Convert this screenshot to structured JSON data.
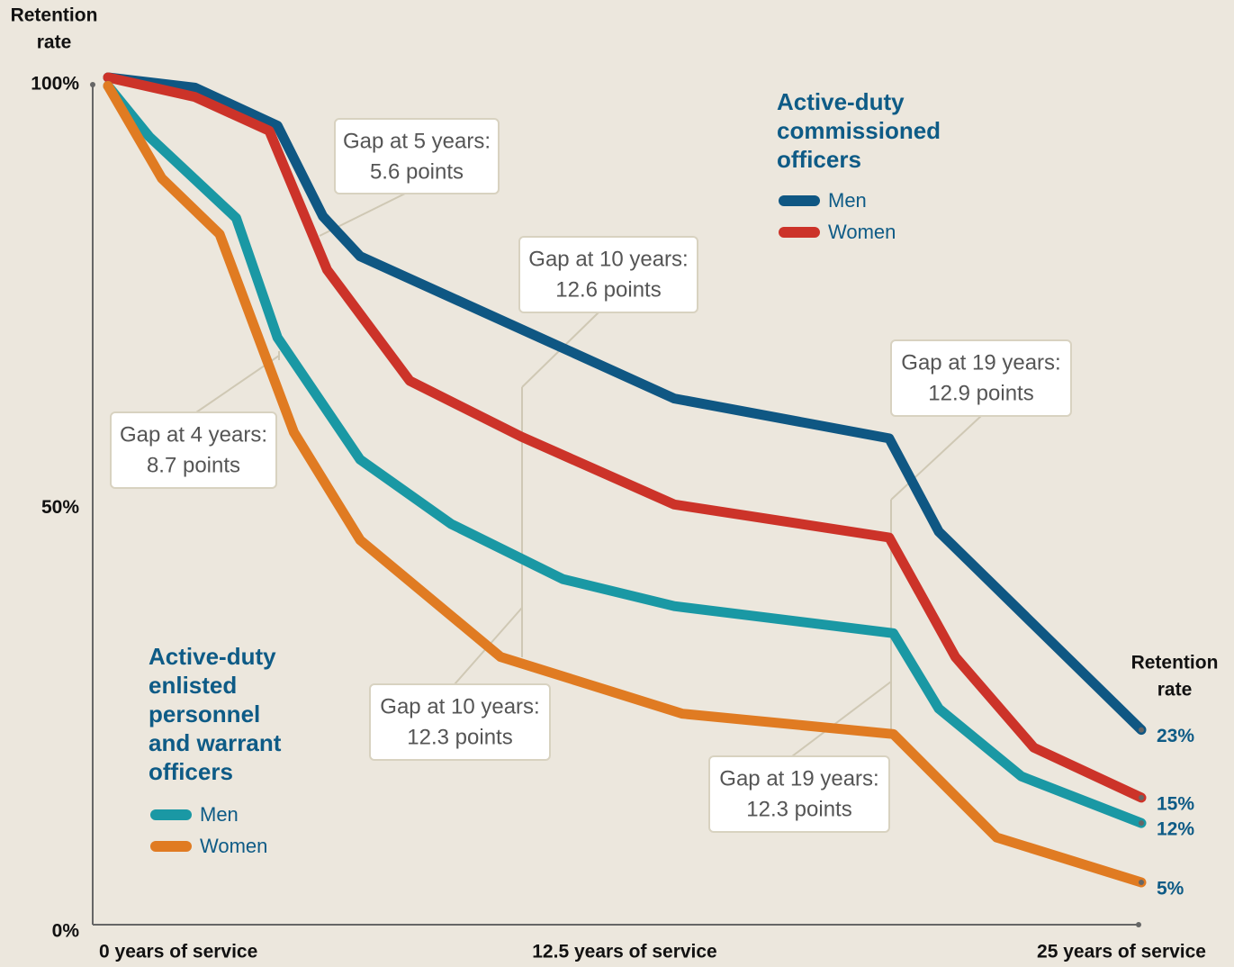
{
  "chart_data": {
    "type": "line",
    "y_label": [
      "Retention",
      "rate"
    ],
    "end_label": [
      "Retention",
      "rate"
    ],
    "ylim": [
      0,
      100
    ],
    "yticks": [
      {
        "value": 0,
        "label": "0%"
      },
      {
        "value": 50,
        "label": "50%"
      },
      {
        "value": 100,
        "label": "100%"
      }
    ],
    "xlim": [
      0,
      25
    ],
    "xticks": [
      {
        "value": 0,
        "label": "0 years of service"
      },
      {
        "value": 12.5,
        "label": "12.5 years of service"
      },
      {
        "value": 25,
        "label": "25 years of service"
      }
    ],
    "groups": [
      {
        "title": [
          "Active-duty",
          "commissioned",
          "officers"
        ],
        "series": [
          {
            "name": "Men",
            "color": "#0f5783",
            "x": [
              0,
              2.1,
              4.1,
              5.2,
              6.1,
              13.7,
              18.9,
              20.1,
              25
            ],
            "values": [
              100,
              98.8,
              94.3,
              83.6,
              78.9,
              62.1,
              57.4,
              46.4,
              23
            ],
            "value_labels": [
              null,
              null,
              null,
              null,
              null,
              null,
              null,
              null,
              "23%"
            ]
          },
          {
            "name": "Women",
            "color": "#cc3329",
            "x": [
              0,
              2.1,
              3.9,
              5.3,
              7.3,
              10,
              13.7,
              18.9,
              20.5,
              22.4,
              25
            ],
            "values": [
              100,
              97.7,
              93.7,
              77.3,
              64.2,
              57.6,
              49.6,
              45.7,
              31.6,
              20.9,
              15
            ],
            "value_labels": [
              null,
              null,
              null,
              null,
              null,
              null,
              null,
              null,
              null,
              null,
              "15%"
            ]
          }
        ]
      },
      {
        "title": [
          "Active-duty",
          "enlisted",
          "personnel",
          "and warrant",
          "officers"
        ],
        "series": [
          {
            "name": "Men",
            "color": "#1a98a4",
            "x": [
              0,
              1,
              3.1,
              4.1,
              6.1,
              8.3,
              11,
              13.7,
              19,
              20.1,
              22.1,
              25
            ],
            "values": [
              99,
              93,
              83.4,
              69.3,
              54.9,
              47.3,
              40.8,
              37.6,
              34.4,
              25.5,
              17.5,
              12
            ],
            "value_labels": [
              null,
              null,
              null,
              null,
              null,
              null,
              null,
              null,
              null,
              null,
              null,
              "12%"
            ]
          },
          {
            "name": "Women",
            "color": "#e07b22",
            "x": [
              0,
              1.3,
              2.7,
              4.5,
              6.1,
              9.5,
              13.9,
              19,
              21.5,
              25
            ],
            "values": [
              99,
              88.1,
              81.5,
              58.1,
              45.4,
              31.6,
              24.9,
              22.5,
              10.3,
              5
            ],
            "value_labels": [
              null,
              null,
              null,
              null,
              null,
              null,
              null,
              null,
              null,
              "5%"
            ]
          }
        ]
      }
    ],
    "annotations": [
      [
        "Gap at 5 years:",
        "5.6 points"
      ],
      [
        "Gap at 10 years:",
        "12.6 points"
      ],
      [
        "Gap at 19 years:",
        "12.9 points"
      ],
      [
        "Gap at 4 years:",
        "8.7 points"
      ],
      [
        "Gap at 10 years:",
        "12.3 points"
      ],
      [
        "Gap at 19 years:",
        "12.3 points"
      ]
    ]
  }
}
